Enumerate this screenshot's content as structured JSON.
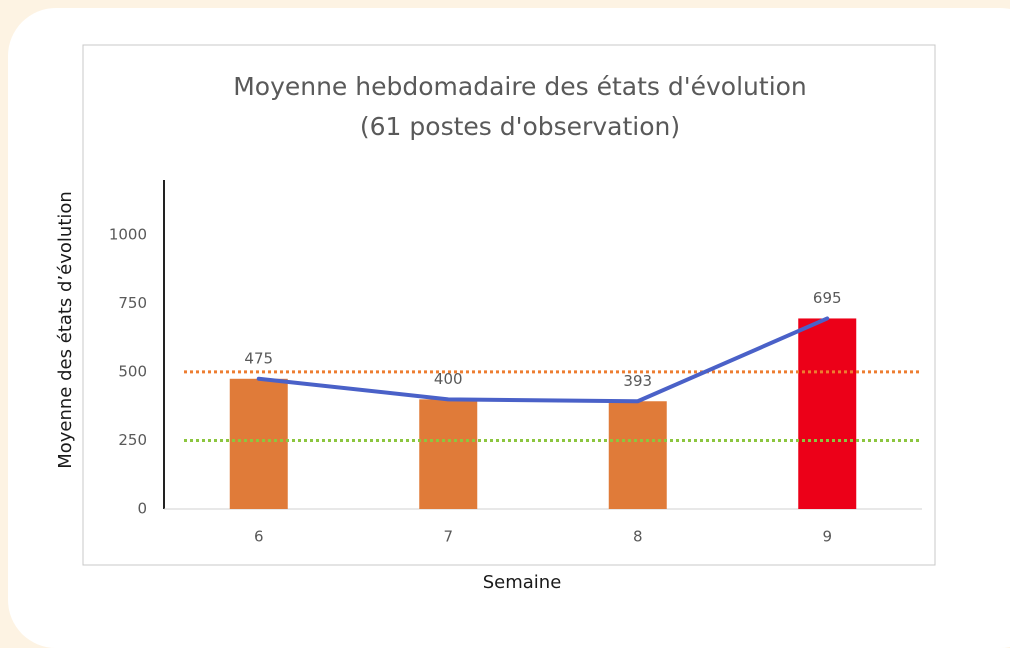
{
  "chart_data": {
    "type": "bar",
    "title": [
      "Moyenne hebdomadaire des états d'évolution",
      "(61 postes d'observation)"
    ],
    "x_label": "Semaine",
    "y_label": "Moyenne des états d’évolution",
    "categories": [
      "6",
      "7",
      "8",
      "9"
    ],
    "values": [
      475,
      400,
      393,
      695
    ],
    "bar_colors": [
      "#e07b39",
      "#e07b39",
      "#e07b39",
      "#ec0018"
    ],
    "line": true,
    "line_color": "#4a61c8",
    "reference_lines": [
      {
        "value": 500,
        "color": "#ed7d31"
      },
      {
        "value": 250,
        "color": "#8cc63f"
      }
    ],
    "ylim": [
      0,
      1200
    ],
    "yticks": [
      0,
      250,
      500,
      750,
      1000
    ],
    "grid": false
  }
}
